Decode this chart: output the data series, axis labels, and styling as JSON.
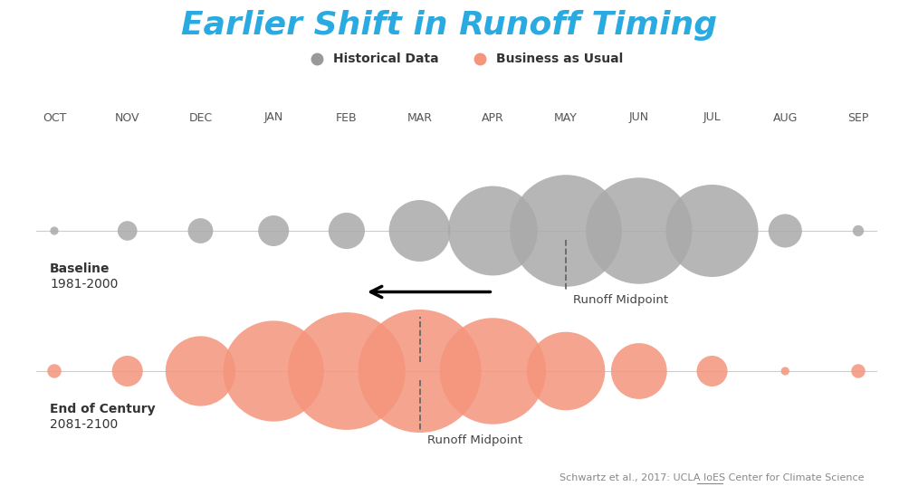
{
  "title": "Earlier Shift in Runoff Timing",
  "title_color": "#29ABE2",
  "months": [
    "OCT",
    "NOV",
    "DEC",
    "JAN",
    "FEB",
    "MAR",
    "APR",
    "MAY",
    "JUN",
    "JUL",
    "AUG",
    "SEP"
  ],
  "baseline_sizes": [
    3,
    7,
    9,
    11,
    13,
    22,
    32,
    40,
    38,
    33,
    12,
    4
  ],
  "future_sizes": [
    5,
    11,
    25,
    36,
    42,
    44,
    38,
    28,
    20,
    11,
    3,
    5
  ],
  "baseline_color": "#AAAAAA",
  "future_color": "#F4957C",
  "baseline_midpoint_idx": 7,
  "future_midpoint_idx": 5,
  "legend_gray_color": "#999999",
  "legend_orange_color": "#F4957C",
  "citation": "Schwartz et al., 2017: UCLA IoES Center for Climate Science",
  "baseline_label_line1": "Baseline",
  "baseline_label_line2": "1981-2000",
  "future_label_line1": "End of Century",
  "future_label_line2": "2081-2100"
}
